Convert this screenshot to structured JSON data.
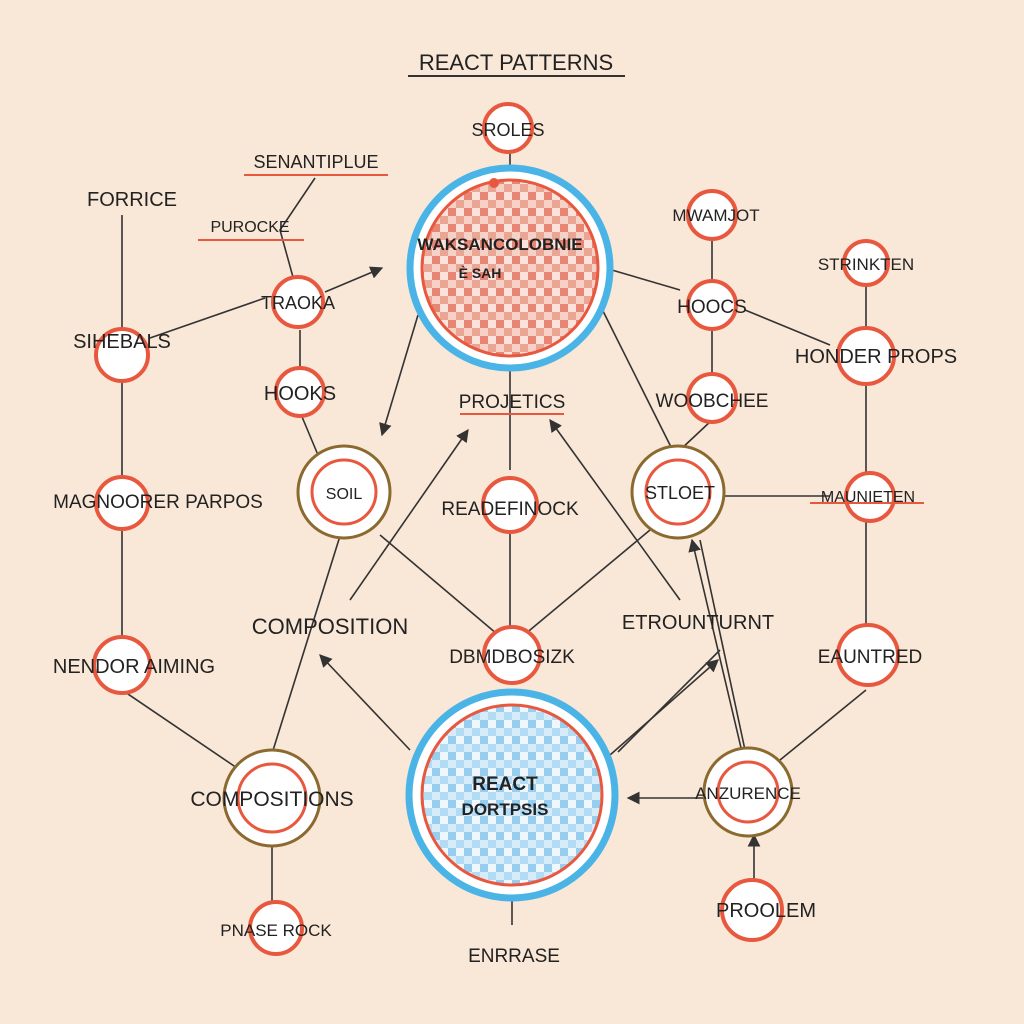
{
  "title": "REACT PATTERNS",
  "colors": {
    "background": "#f9e7d7",
    "ring_red": "#e8583f",
    "ring_brown": "#8a6a2e",
    "ring_blue": "#4bb4e6",
    "line": "#333333",
    "text": "#222222",
    "top_hub_fill": "#e36b58",
    "bottom_hub_fill": "#7cc2ec"
  },
  "hubs": {
    "top": {
      "label_line1": "WAKSANCOLOBNIE",
      "label_line2": "È SAH"
    },
    "bottom": {
      "label_line1": "REACT",
      "label_line2": "DORTPSIS"
    }
  },
  "nodes": {
    "sroles": "SROLES",
    "senantiplue": "SENANTIPLUE",
    "purocke": "PUROCKE",
    "forrice": "FORRICE",
    "traoka": "TRAOKA",
    "sihebals": "SIHEBALS",
    "hooks_left": "HOOKS",
    "projetics": "PROJETICS",
    "soil": "SOIL",
    "magnoprer_parpos": "MAGNOORER PARPOS",
    "readerinock": "READEFINOCK",
    "composition": "COMPOSITION",
    "nendor_aiming": "NENDOR AIMING",
    "dbmdbosizk": "DBMDBOSIZK",
    "compositions": "COMPOSITIONS",
    "pnase_rock": "PNASE ROCK",
    "enrrase": "ENRRASE",
    "mwamjot": "MWAMJOT",
    "hoocs": "HOOCS",
    "strinkten": "STRINKTEN",
    "honder_props": "HONDER PROPS",
    "woobchee": "WOOBCHEE",
    "stloet": "STLOET",
    "maunieten": "MAUNIETEN",
    "etrounturnt": "ETROUNTURNT",
    "eauntred": "EAUNTRED",
    "anzurence": "ANZURENCE",
    "proolem": "PROOLEM"
  }
}
